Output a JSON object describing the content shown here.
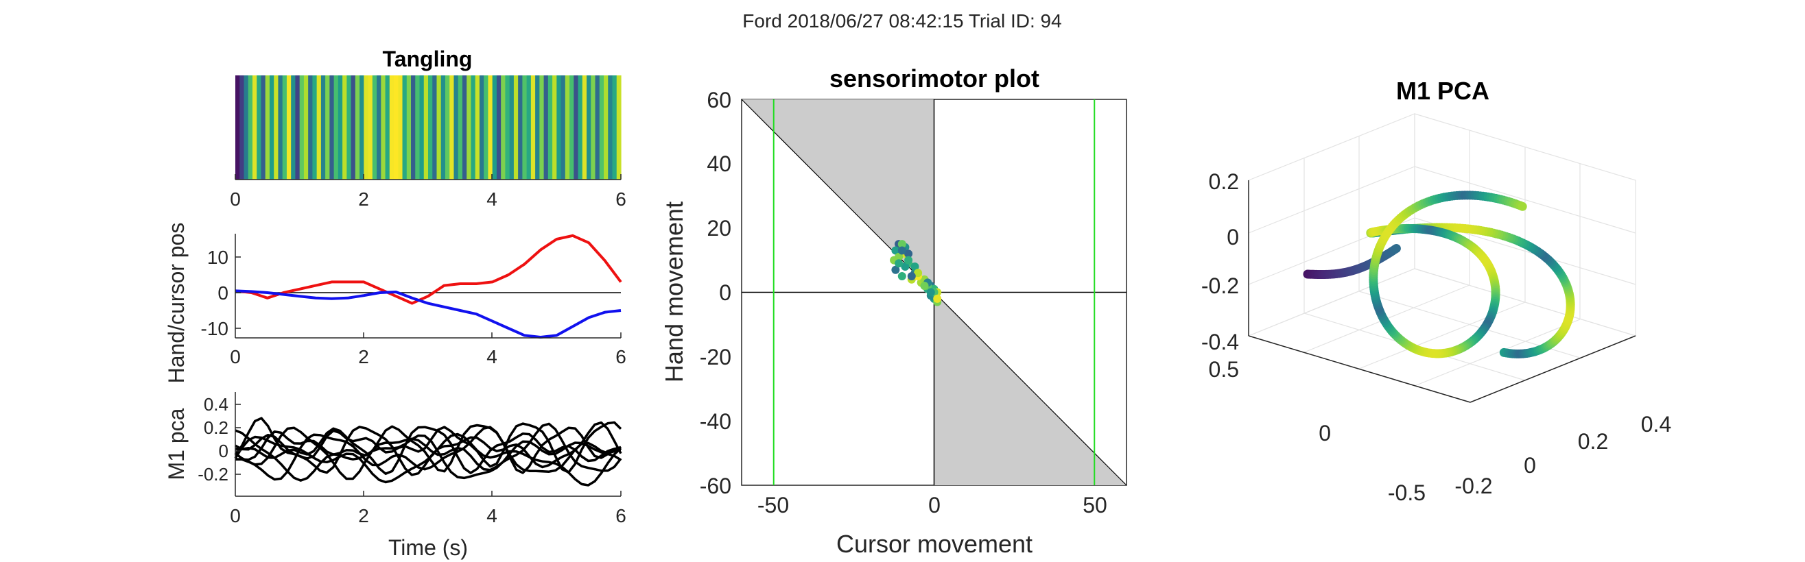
{
  "figure": {
    "suptitle": "Ford 2018/06/27 08:42:15 Trial ID: 94"
  },
  "colors": {
    "red": "#ee1111",
    "blue": "#1111ee",
    "green": "#22dd22",
    "shade": "#cccccc",
    "black": "#000000"
  },
  "chart_data": [
    {
      "id": "tangling",
      "type": "heatmap",
      "title": "Tangling",
      "xlim": [
        0,
        6
      ],
      "xticks": [
        "0",
        "2",
        "4",
        "6"
      ],
      "colormap": "viridis",
      "values": [
        0.05,
        0.18,
        0.42,
        0.7,
        0.95,
        0.6,
        0.3,
        0.85,
        0.55,
        0.92,
        0.4,
        0.7,
        0.98,
        0.5,
        0.2,
        0.75,
        0.88,
        0.35,
        0.6,
        0.95,
        0.45,
        0.8,
        0.3,
        0.7,
        0.55,
        0.9,
        0.65,
        0.25,
        0.8,
        0.5,
        0.95,
        0.97,
        0.7,
        0.4,
        0.85,
        0.6,
        0.99,
        1.0,
        0.98,
        0.6,
        0.8,
        0.3,
        0.7,
        0.55,
        0.9,
        0.65,
        0.35,
        0.88,
        0.5,
        0.75,
        0.96,
        0.45,
        0.7,
        0.3,
        0.85,
        0.6,
        0.92,
        0.4,
        0.7,
        0.98,
        0.55,
        0.25,
        0.8,
        0.65,
        0.5,
        0.9,
        0.35,
        0.72,
        0.6,
        0.95,
        0.45,
        0.8,
        0.3,
        0.68,
        0.9,
        0.55,
        0.4,
        0.85,
        0.7,
        0.25,
        0.6,
        0.95,
        0.5,
        0.8,
        0.35,
        0.72,
        0.88,
        0.45,
        0.6,
        0.92
      ]
    },
    {
      "id": "hand-cursor",
      "type": "line",
      "ylabel": "Hand/cursor pos",
      "xlim": [
        0,
        6
      ],
      "ylim": [
        -12.5,
        16
      ],
      "xticks": [
        "0",
        "2",
        "4",
        "6"
      ],
      "yticks": [
        "-10",
        "0",
        "10"
      ],
      "x": [
        0,
        0.25,
        0.5,
        0.75,
        1,
        1.25,
        1.5,
        1.75,
        2,
        2.25,
        2.5,
        2.75,
        3,
        3.25,
        3.5,
        3.75,
        4,
        4.25,
        4.5,
        4.75,
        5,
        5.25,
        5.5,
        5.75,
        6
      ],
      "series": [
        {
          "color": "red",
          "values": [
            0.5,
            0,
            -1.5,
            0,
            1,
            2,
            3,
            3,
            3,
            1,
            -1,
            -3,
            -1,
            2,
            2.5,
            2.5,
            3,
            5,
            8,
            12,
            15,
            16,
            14,
            9,
            3
          ]
        },
        {
          "color": "blue",
          "values": [
            0.5,
            0.3,
            0,
            -0.5,
            -1,
            -1.5,
            -1.7,
            -1.5,
            -0.8,
            0,
            0.2,
            -1.5,
            -3,
            -4,
            -5,
            -6,
            -8,
            -10,
            -12,
            -12.5,
            -12,
            -9.5,
            -7,
            -5.5,
            -5
          ]
        }
      ]
    },
    {
      "id": "m1-pca-traces",
      "type": "line",
      "ylabel": "M1 pca",
      "xlabel": "Time (s)",
      "xlim": [
        0,
        6
      ],
      "ylim": [
        -0.35,
        0.55
      ],
      "xticks": [
        "0",
        "2",
        "4",
        "6"
      ],
      "yticks": [
        "-0.2",
        "0",
        "0.2",
        "0.4"
      ],
      "n_traces": 8,
      "points_per_trace": 60
    },
    {
      "id": "sensorimotor",
      "type": "scatter",
      "title": "sensorimotor plot",
      "xlabel": "Cursor movement",
      "ylabel": "Hand movement",
      "xlim": [
        -60,
        60
      ],
      "ylim": [
        -60,
        60
      ],
      "xticks": [
        "-50",
        "0",
        "50"
      ],
      "yticks": [
        "-60",
        "-40",
        "-20",
        "0",
        "20",
        "40",
        "60"
      ],
      "vlines": [
        -50,
        50
      ],
      "diagonal": [
        [
          -60,
          60
        ],
        [
          60,
          -60
        ]
      ],
      "points": [
        [
          -11,
          15
        ],
        [
          -12,
          13
        ],
        [
          -12.5,
          10
        ],
        [
          -12,
          7
        ],
        [
          -10,
          5
        ],
        [
          -7,
          4
        ],
        [
          -4,
          3
        ],
        [
          -2,
          2
        ],
        [
          -1,
          0
        ],
        [
          0,
          -2
        ],
        [
          1,
          -3
        ],
        [
          0,
          -1
        ],
        [
          -2,
          1
        ],
        [
          -4,
          3
        ],
        [
          -6,
          6
        ],
        [
          -8,
          9
        ],
        [
          -9,
          12
        ],
        [
          -9,
          14
        ],
        [
          -10,
          15
        ],
        [
          -8,
          12
        ],
        [
          -6,
          8
        ],
        [
          -3,
          4
        ],
        [
          -1,
          2
        ],
        [
          0,
          1
        ],
        [
          1,
          0
        ],
        [
          -1,
          -1
        ],
        [
          -2,
          2
        ],
        [
          -5,
          5
        ],
        [
          -9,
          8
        ],
        [
          -11,
          11
        ],
        [
          -10,
          13
        ],
        [
          -8,
          10
        ],
        [
          -5,
          6
        ],
        [
          -2,
          3
        ],
        [
          0,
          0
        ],
        [
          1,
          -2
        ],
        [
          -1,
          0
        ],
        [
          -3,
          2
        ],
        [
          -7,
          5
        ],
        [
          -11,
          9
        ]
      ]
    },
    {
      "id": "m1-pca-3d",
      "type": "scatter",
      "title": "M1 PCA",
      "z_ticks": [
        "-0.4",
        "-0.2",
        "0",
        "0.2"
      ],
      "y_ticks": [
        "-0.5",
        "0",
        "0.5"
      ],
      "x_ticks": [
        "-0.2",
        "0",
        "0.2",
        "0.4"
      ]
    }
  ]
}
